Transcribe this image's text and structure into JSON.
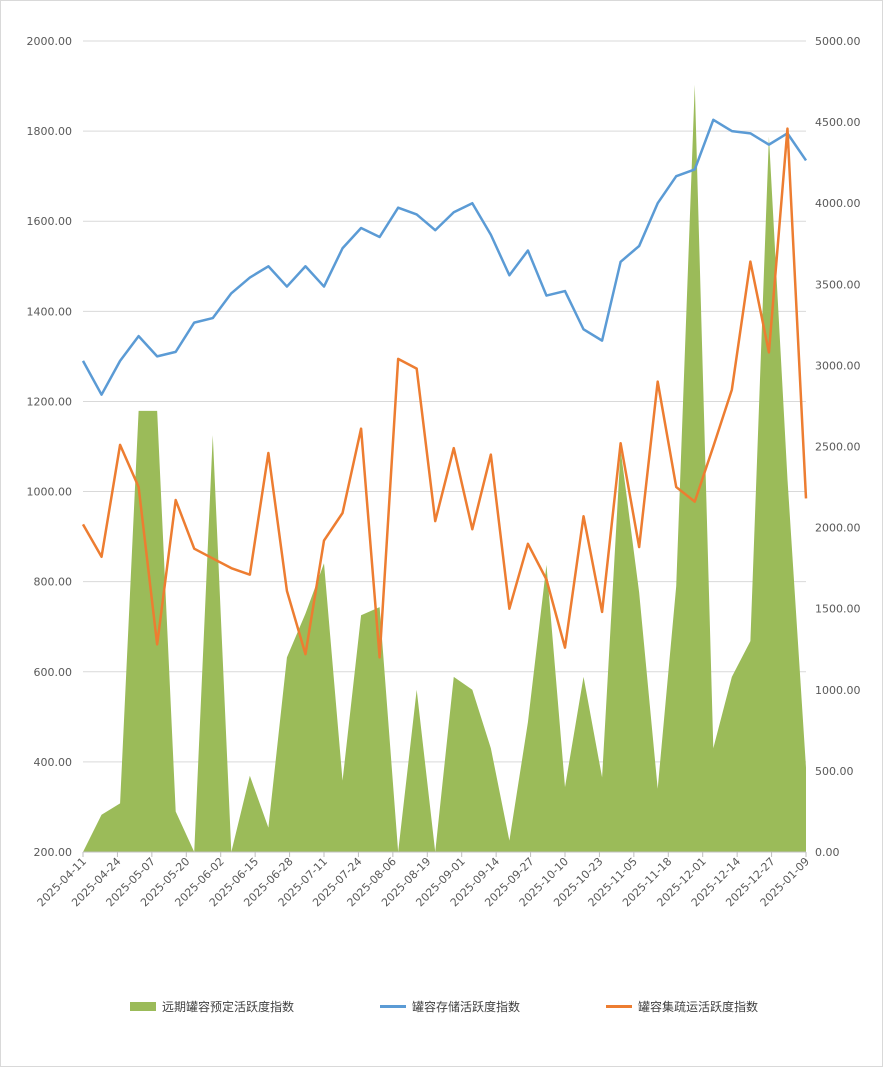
{
  "chart_data": {
    "type": "area",
    "title": "",
    "xlabel": "",
    "ylabel": "",
    "ylim": [
      200,
      2000
    ],
    "y2lim": [
      0,
      5000
    ],
    "yticks": [
      "200.00",
      "400.00",
      "600.00",
      "800.00",
      "1000.00",
      "1200.00",
      "1400.00",
      "1600.00",
      "1800.00",
      "2000.00"
    ],
    "y2ticks": [
      "0.00",
      "500.00",
      "1000.00",
      "1500.00",
      "2000.00",
      "2500.00",
      "3000.00",
      "3500.00",
      "4000.00",
      "4500.00",
      "5000.00"
    ],
    "xtick_labels": [
      "2025-04-11",
      "2025-04-24",
      "2025-05-07",
      "2025-05-20",
      "2025-06-02",
      "2025-06-15",
      "2025-06-28",
      "2025-07-11",
      "2025-07-24",
      "2025-08-06",
      "2025-08-19",
      "2025-09-01",
      "2025-09-14",
      "2025-09-27",
      "2025-10-10",
      "2025-10-23",
      "2025-11-05",
      "2025-11-18",
      "2025-12-01",
      "2025-12-14",
      "2025-12-27",
      "2025-01-09"
    ],
    "grid": true,
    "legend_position": "bottom",
    "series": [
      {
        "name": "远期罐容预定活跃度指数",
        "type": "area",
        "axis": "right",
        "color": "#9bbb59",
        "values": [
          0,
          230,
          300,
          2720,
          2720,
          250,
          0,
          2570,
          0,
          470,
          150,
          1200,
          1470,
          1780,
          440,
          1460,
          1510,
          0,
          1000,
          0,
          1080,
          1000,
          640,
          70,
          800,
          1770,
          400,
          1080,
          460,
          2480,
          1600,
          390,
          1640,
          4730,
          640,
          1080,
          1300,
          4410,
          2300,
          520
        ]
      },
      {
        "name": "罐容存储活跃度指数",
        "type": "line",
        "axis": "left",
        "color": "#5b9bd5",
        "values": [
          1290,
          1215,
          1290,
          1345,
          1300,
          1310,
          1375,
          1385,
          1440,
          1475,
          1500,
          1455,
          1500,
          1455,
          1540,
          1585,
          1565,
          1630,
          1615,
          1580,
          1620,
          1640,
          1570,
          1480,
          1535,
          1435,
          1445,
          1360,
          1335,
          1510,
          1545,
          1640,
          1700,
          1715,
          1825,
          1800,
          1795,
          1770,
          1795,
          1735
        ]
      },
      {
        "name": "罐容集疏运活跃度指数",
        "type": "line",
        "axis": "right",
        "color": "#ed7d31",
        "values": [
          2020,
          1820,
          2510,
          2250,
          1280,
          2170,
          1870,
          1810,
          1750,
          1710,
          2460,
          1610,
          1220,
          1920,
          2090,
          2610,
          1200,
          3040,
          2980,
          2040,
          2490,
          1990,
          2450,
          1500,
          1900,
          1680,
          1260,
          2070,
          1480,
          2520,
          1880,
          2900,
          2250,
          2160,
          2500,
          2850,
          3640,
          3080,
          4460,
          2180
        ]
      }
    ]
  }
}
